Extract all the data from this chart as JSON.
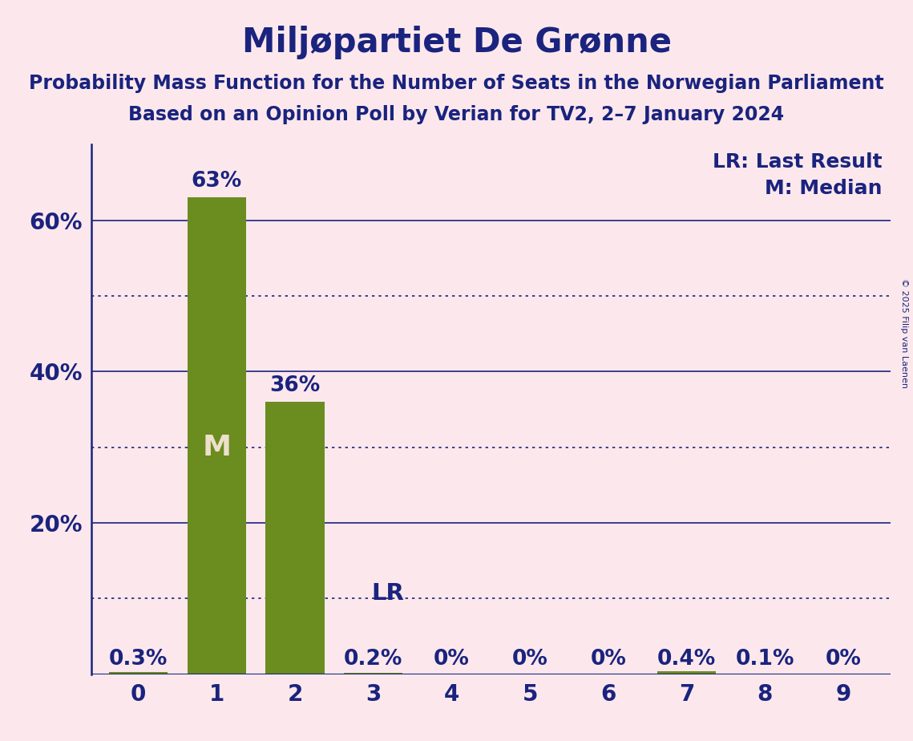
{
  "title": "Miljøpartiet De Grønne",
  "subtitle1": "Probability Mass Function for the Number of Seats in the Norwegian Parliament",
  "subtitle2": "Based on an Opinion Poll by Verian for TV2, 2–7 January 2024",
  "copyright": "© 2025 Filip van Laenen",
  "seats": [
    0,
    1,
    2,
    3,
    4,
    5,
    6,
    7,
    8,
    9
  ],
  "probabilities": [
    0.003,
    0.63,
    0.36,
    0.002,
    0.0,
    0.0,
    0.0,
    0.004,
    0.001,
    0.0
  ],
  "pct_labels": [
    "0.3%",
    "63%",
    "36%",
    "0.2%",
    "0%",
    "0%",
    "0%",
    "0.4%",
    "0.1%",
    "0%"
  ],
  "bar_color": "#6b8c1e",
  "background_color": "#fce8ec",
  "title_color": "#1a237e",
  "subtitle_color": "#1a237e",
  "axis_color": "#1a237e",
  "tick_color": "#1a237e",
  "label_color": "#1a237e",
  "M_label_color": "#ede0cc",
  "median_seat": 1,
  "lr_seat": 3,
  "ylim": [
    0,
    0.7
  ],
  "yticks_solid": [
    0.2,
    0.4,
    0.6
  ],
  "yticks_dotted": [
    0.1,
    0.3,
    0.5
  ],
  "bar_width": 0.75,
  "title_fontsize": 30,
  "subtitle_fontsize": 17,
  "tick_fontsize": 20,
  "value_label_fontsize": 19,
  "legend_fontsize": 18,
  "M_fontsize": 26,
  "LR_fontsize": 21,
  "copyright_fontsize": 8
}
